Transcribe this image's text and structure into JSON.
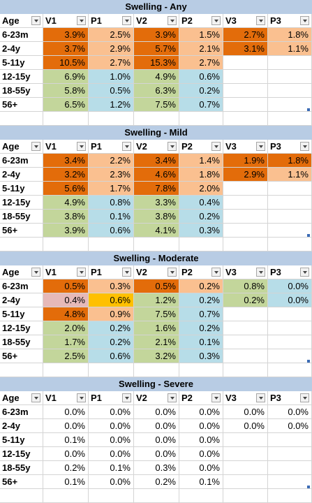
{
  "columns": [
    "Age",
    "V1",
    "P1",
    "V2",
    "P2",
    "V3",
    "P3"
  ],
  "colors": {
    "orange": "#e36c0a",
    "peach": "#fac090",
    "green": "#c3d69b",
    "blue": "#b7dde8",
    "pink": "#e6b9b8",
    "yellow": "#ffc000",
    "header": "#b8cce4"
  },
  "sections": [
    {
      "title": "Swelling - Any",
      "rows": [
        {
          "age": "6-23m",
          "cells": [
            {
              "v": "3.9%",
              "c": "orange"
            },
            {
              "v": "2.5%",
              "c": "peach"
            },
            {
              "v": "3.9%",
              "c": "orange"
            },
            {
              "v": "1.5%",
              "c": "peach"
            },
            {
              "v": "2.7%",
              "c": "orange"
            },
            {
              "v": "1.8%",
              "c": "peach"
            }
          ]
        },
        {
          "age": "2-4y",
          "cells": [
            {
              "v": "3.7%",
              "c": "orange"
            },
            {
              "v": "2.9%",
              "c": "peach"
            },
            {
              "v": "5.7%",
              "c": "orange"
            },
            {
              "v": "2.1%",
              "c": "peach"
            },
            {
              "v": "3.1%",
              "c": "orange"
            },
            {
              "v": "1.1%",
              "c": "peach"
            }
          ]
        },
        {
          "age": "5-11y",
          "cells": [
            {
              "v": "10.5%",
              "c": "orange"
            },
            {
              "v": "2.7%",
              "c": "peach"
            },
            {
              "v": "15.3%",
              "c": "orange"
            },
            {
              "v": "2.7%",
              "c": "peach"
            },
            {
              "v": "",
              "c": ""
            },
            {
              "v": "",
              "c": ""
            }
          ]
        },
        {
          "age": "12-15y",
          "cells": [
            {
              "v": "6.9%",
              "c": "green"
            },
            {
              "v": "1.0%",
              "c": "blue"
            },
            {
              "v": "4.9%",
              "c": "green"
            },
            {
              "v": "0.6%",
              "c": "blue"
            },
            {
              "v": "",
              "c": ""
            },
            {
              "v": "",
              "c": ""
            }
          ]
        },
        {
          "age": "18-55y",
          "cells": [
            {
              "v": "5.8%",
              "c": "green"
            },
            {
              "v": "0.5%",
              "c": "blue"
            },
            {
              "v": "6.3%",
              "c": "green"
            },
            {
              "v": "0.2%",
              "c": "blue"
            },
            {
              "v": "",
              "c": ""
            },
            {
              "v": "",
              "c": ""
            }
          ]
        },
        {
          "age": "56+",
          "cells": [
            {
              "v": "6.5%",
              "c": "green"
            },
            {
              "v": "1.2%",
              "c": "blue"
            },
            {
              "v": "7.5%",
              "c": "green"
            },
            {
              "v": "0.7%",
              "c": "blue"
            },
            {
              "v": "",
              "c": ""
            },
            {
              "v": "",
              "c": ""
            }
          ]
        }
      ]
    },
    {
      "title": "Swelling - Mild",
      "rows": [
        {
          "age": "6-23m",
          "cells": [
            {
              "v": "3.4%",
              "c": "orange"
            },
            {
              "v": "2.2%",
              "c": "peach"
            },
            {
              "v": "3.4%",
              "c": "orange"
            },
            {
              "v": "1.4%",
              "c": "peach"
            },
            {
              "v": "1.9%",
              "c": "orange"
            },
            {
              "v": "1.8%",
              "c": "orange"
            }
          ]
        },
        {
          "age": "2-4y",
          "cells": [
            {
              "v": "3.2%",
              "c": "orange"
            },
            {
              "v": "2.3%",
              "c": "peach"
            },
            {
              "v": "4.6%",
              "c": "orange"
            },
            {
              "v": "1.8%",
              "c": "peach"
            },
            {
              "v": "2.9%",
              "c": "orange"
            },
            {
              "v": "1.1%",
              "c": "peach"
            }
          ]
        },
        {
          "age": "5-11y",
          "cells": [
            {
              "v": "5.6%",
              "c": "orange"
            },
            {
              "v": "1.7%",
              "c": "peach"
            },
            {
              "v": "7.8%",
              "c": "orange"
            },
            {
              "v": "2.0%",
              "c": "peach"
            },
            {
              "v": "",
              "c": ""
            },
            {
              "v": "",
              "c": ""
            }
          ]
        },
        {
          "age": "12-15y",
          "cells": [
            {
              "v": "4.9%",
              "c": "green"
            },
            {
              "v": "0.8%",
              "c": "blue"
            },
            {
              "v": "3.3%",
              "c": "green"
            },
            {
              "v": "0.4%",
              "c": "blue"
            },
            {
              "v": "",
              "c": ""
            },
            {
              "v": "",
              "c": ""
            }
          ]
        },
        {
          "age": "18-55y",
          "cells": [
            {
              "v": "3.8%",
              "c": "green"
            },
            {
              "v": "0.1%",
              "c": "blue"
            },
            {
              "v": "3.8%",
              "c": "green"
            },
            {
              "v": "0.2%",
              "c": "blue"
            },
            {
              "v": "",
              "c": ""
            },
            {
              "v": "",
              "c": ""
            }
          ]
        },
        {
          "age": "56+",
          "cells": [
            {
              "v": "3.9%",
              "c": "green"
            },
            {
              "v": "0.6%",
              "c": "blue"
            },
            {
              "v": "4.1%",
              "c": "green"
            },
            {
              "v": "0.3%",
              "c": "blue"
            },
            {
              "v": "",
              "c": ""
            },
            {
              "v": "",
              "c": ""
            }
          ]
        }
      ]
    },
    {
      "title": "Swelling - Moderate",
      "rows": [
        {
          "age": "6-23m",
          "cells": [
            {
              "v": "0.5%",
              "c": "orange"
            },
            {
              "v": "0.3%",
              "c": "peach"
            },
            {
              "v": "0.5%",
              "c": "orange"
            },
            {
              "v": "0.2%",
              "c": "peach"
            },
            {
              "v": "0.8%",
              "c": "green"
            },
            {
              "v": "0.0%",
              "c": "blue"
            }
          ]
        },
        {
          "age": "2-4y",
          "cells": [
            {
              "v": "0.4%",
              "c": "pink"
            },
            {
              "v": "0.6%",
              "c": "yellow"
            },
            {
              "v": "1.2%",
              "c": "green"
            },
            {
              "v": "0.2%",
              "c": "blue"
            },
            {
              "v": "0.2%",
              "c": "green"
            },
            {
              "v": "0.0%",
              "c": "blue"
            }
          ]
        },
        {
          "age": "5-11y",
          "cells": [
            {
              "v": "4.8%",
              "c": "orange"
            },
            {
              "v": "0.9%",
              "c": "peach"
            },
            {
              "v": "7.5%",
              "c": "green"
            },
            {
              "v": "0.7%",
              "c": "blue"
            },
            {
              "v": "",
              "c": ""
            },
            {
              "v": "",
              "c": ""
            }
          ]
        },
        {
          "age": "12-15y",
          "cells": [
            {
              "v": "2.0%",
              "c": "green"
            },
            {
              "v": "0.2%",
              "c": "blue"
            },
            {
              "v": "1.6%",
              "c": "green"
            },
            {
              "v": "0.2%",
              "c": "blue"
            },
            {
              "v": "",
              "c": ""
            },
            {
              "v": "",
              "c": ""
            }
          ]
        },
        {
          "age": "18-55y",
          "cells": [
            {
              "v": "1.7%",
              "c": "green"
            },
            {
              "v": "0.2%",
              "c": "blue"
            },
            {
              "v": "2.1%",
              "c": "green"
            },
            {
              "v": "0.1%",
              "c": "blue"
            },
            {
              "v": "",
              "c": ""
            },
            {
              "v": "",
              "c": ""
            }
          ]
        },
        {
          "age": "56+",
          "cells": [
            {
              "v": "2.5%",
              "c": "green"
            },
            {
              "v": "0.6%",
              "c": "blue"
            },
            {
              "v": "3.2%",
              "c": "green"
            },
            {
              "v": "0.3%",
              "c": "blue"
            },
            {
              "v": "",
              "c": ""
            },
            {
              "v": "",
              "c": ""
            }
          ]
        }
      ]
    },
    {
      "title": "Swelling - Severe",
      "rows": [
        {
          "age": "6-23m",
          "cells": [
            {
              "v": "0.0%",
              "c": ""
            },
            {
              "v": "0.0%",
              "c": ""
            },
            {
              "v": "0.0%",
              "c": ""
            },
            {
              "v": "0.0%",
              "c": ""
            },
            {
              "v": "0.0%",
              "c": ""
            },
            {
              "v": "0.0%",
              "c": ""
            }
          ]
        },
        {
          "age": "2-4y",
          "cells": [
            {
              "v": "0.0%",
              "c": ""
            },
            {
              "v": "0.0%",
              "c": ""
            },
            {
              "v": "0.0%",
              "c": ""
            },
            {
              "v": "0.0%",
              "c": ""
            },
            {
              "v": "0.0%",
              "c": ""
            },
            {
              "v": "0.0%",
              "c": ""
            }
          ]
        },
        {
          "age": "5-11y",
          "cells": [
            {
              "v": "0.1%",
              "c": ""
            },
            {
              "v": "0.0%",
              "c": ""
            },
            {
              "v": "0.0%",
              "c": ""
            },
            {
              "v": "0.0%",
              "c": ""
            },
            {
              "v": "",
              "c": ""
            },
            {
              "v": "",
              "c": ""
            }
          ]
        },
        {
          "age": "12-15y",
          "cells": [
            {
              "v": "0.0%",
              "c": ""
            },
            {
              "v": "0.0%",
              "c": ""
            },
            {
              "v": "0.0%",
              "c": ""
            },
            {
              "v": "0.0%",
              "c": ""
            },
            {
              "v": "",
              "c": ""
            },
            {
              "v": "",
              "c": ""
            }
          ]
        },
        {
          "age": "18-55y",
          "cells": [
            {
              "v": "0.2%",
              "c": ""
            },
            {
              "v": "0.1%",
              "c": ""
            },
            {
              "v": "0.3%",
              "c": ""
            },
            {
              "v": "0.0%",
              "c": ""
            },
            {
              "v": "",
              "c": ""
            },
            {
              "v": "",
              "c": ""
            }
          ]
        },
        {
          "age": "56+",
          "cells": [
            {
              "v": "0.1%",
              "c": ""
            },
            {
              "v": "0.0%",
              "c": ""
            },
            {
              "v": "0.2%",
              "c": ""
            },
            {
              "v": "0.1%",
              "c": ""
            },
            {
              "v": "",
              "c": ""
            },
            {
              "v": "",
              "c": ""
            }
          ]
        }
      ]
    }
  ]
}
